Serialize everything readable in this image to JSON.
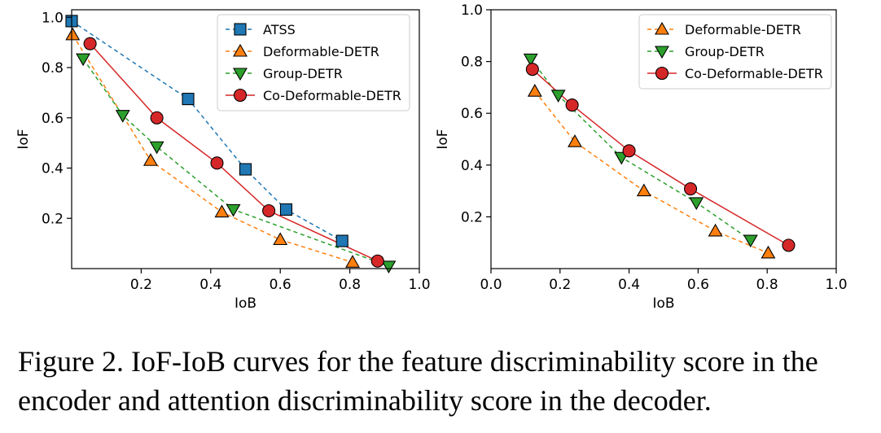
{
  "chart_data": [
    {
      "type": "line",
      "title": "",
      "xlabel": "IoB",
      "ylabel": "IoF",
      "xlim": [
        0.0,
        1.0
      ],
      "ylim": [
        0.0,
        1.03
      ],
      "xticks": [
        0.2,
        0.4,
        0.6,
        0.8,
        1.0
      ],
      "yticks": [
        0.2,
        0.4,
        0.6,
        0.8,
        1.0
      ],
      "legend_position": "top-right",
      "series": [
        {
          "name": "ATSS",
          "marker": "square",
          "color": "#1f77b4",
          "linestyle": "dashed",
          "x": [
            0.0,
            0.335,
            0.5,
            0.617,
            0.778
          ],
          "y": [
            0.985,
            0.675,
            0.395,
            0.235,
            0.11
          ]
        },
        {
          "name": "Deformable-DETR",
          "marker": "triangle-up",
          "color": "#ff7f0e",
          "linestyle": "dashed",
          "x": [
            0.003,
            0.227,
            0.432,
            0.6,
            0.808
          ],
          "y": [
            0.93,
            0.43,
            0.225,
            0.115,
            0.025
          ]
        },
        {
          "name": "Group-DETR",
          "marker": "triangle-down",
          "color": "#2ca02c",
          "linestyle": "dashed",
          "x": [
            0.033,
            0.147,
            0.245,
            0.465,
            0.912
          ],
          "y": [
            0.835,
            0.61,
            0.485,
            0.235,
            0.01
          ]
        },
        {
          "name": "Co-Deformable-DETR",
          "marker": "circle",
          "color": "#d62728",
          "linestyle": "solid",
          "x": [
            0.053,
            0.245,
            0.418,
            0.567,
            0.88
          ],
          "y": [
            0.895,
            0.6,
            0.42,
            0.23,
            0.03
          ]
        }
      ]
    },
    {
      "type": "line",
      "title": "",
      "xlabel": "IoB",
      "ylabel": "IoF",
      "xlim": [
        0.0,
        1.0
      ],
      "ylim": [
        0.0,
        1.0
      ],
      "xticks": [
        0.0,
        0.2,
        0.4,
        0.6,
        0.8,
        1.0
      ],
      "yticks": [
        0.2,
        0.4,
        0.6,
        0.8,
        1.0
      ],
      "legend_position": "top-right",
      "series": [
        {
          "name": "Deformable-DETR",
          "marker": "triangle-up",
          "color": "#ff7f0e",
          "linestyle": "dashed",
          "x": [
            0.127,
            0.243,
            0.443,
            0.65,
            0.803
          ],
          "y": [
            0.685,
            0.49,
            0.3,
            0.145,
            0.06
          ]
        },
        {
          "name": "Group-DETR",
          "marker": "triangle-down",
          "color": "#2ca02c",
          "linestyle": "dashed",
          "x": [
            0.115,
            0.195,
            0.378,
            0.595,
            0.752
          ],
          "y": [
            0.81,
            0.67,
            0.43,
            0.255,
            0.11
          ]
        },
        {
          "name": "Co-Deformable-DETR",
          "marker": "circle",
          "color": "#d62728",
          "linestyle": "solid",
          "x": [
            0.12,
            0.235,
            0.4,
            0.578,
            0.862
          ],
          "y": [
            0.77,
            0.632,
            0.455,
            0.308,
            0.09
          ]
        }
      ]
    }
  ],
  "caption": "Figure 2. IoF-IoB curves for the feature discriminability score in the encoder and attention discriminability score in the decoder."
}
